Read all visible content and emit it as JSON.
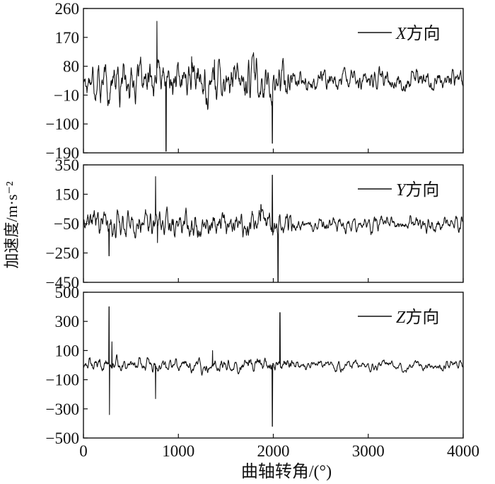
{
  "figure": {
    "ylabel": "加速度/m·s⁻²",
    "xlabel": "曲轴转角/(°)"
  },
  "chart_data": [
    {
      "type": "line",
      "legend": "X方向",
      "legend_italic": "X",
      "legend_rest": "方向",
      "legend_placement": "top-right",
      "xlim": [
        0,
        4000
      ],
      "ylim": [
        -190,
        260
      ],
      "yticks": [
        260,
        170,
        80,
        -10,
        -100,
        -190
      ],
      "yticklabels": [
        "260",
        "170",
        "80",
        "−10",
        "−100",
        "−190"
      ],
      "amp_early": 38,
      "amp_late": 20,
      "spikes": [
        [
          775,
          220
        ],
        [
          870,
          -185
        ],
        [
          1990,
          -160
        ],
        [
          1940,
          40
        ],
        [
          1140,
          110
        ],
        [
          1380,
          100
        ]
      ]
    },
    {
      "type": "line",
      "legend": "Y方向",
      "legend_italic": "Y",
      "legend_rest": "方向",
      "legend_placement": "top-right",
      "xlim": [
        0,
        4000
      ],
      "ylim": [
        -450,
        350
      ],
      "yticks": [
        350,
        150,
        -50,
        -250,
        -450
      ],
      "yticklabels": [
        "350",
        "150",
        "−50",
        "−250",
        "−450"
      ],
      "amp_early": 55,
      "amp_late": 30,
      "spikes": [
        [
          270,
          -270
        ],
        [
          760,
          270
        ],
        [
          780,
          -180
        ],
        [
          1990,
          280
        ],
        [
          2050,
          -450
        ],
        [
          1870,
          80
        ]
      ]
    },
    {
      "type": "line",
      "legend": "Z方向",
      "legend_italic": "Z",
      "legend_rest": "方向",
      "legend_placement": "top-right",
      "xlim": [
        0,
        4000
      ],
      "ylim": [
        -500,
        500
      ],
      "yticks": [
        500,
        300,
        100,
        -100,
        -300,
        -500
      ],
      "yticklabels": [
        "500",
        "300",
        "100",
        "−100",
        "−300",
        "−500"
      ],
      "xticks": [
        0,
        1000,
        2000,
        3000,
        4000
      ],
      "xticklabels": [
        "0",
        "1000",
        "2000",
        "3000",
        "4000"
      ],
      "amp_early": 28,
      "amp_late": 18,
      "spikes": [
        [
          270,
          400
        ],
        [
          275,
          -340
        ],
        [
          760,
          -230
        ],
        [
          1990,
          -420
        ],
        [
          2070,
          360
        ],
        [
          1360,
          100
        ],
        [
          300,
          160
        ]
      ]
    }
  ]
}
